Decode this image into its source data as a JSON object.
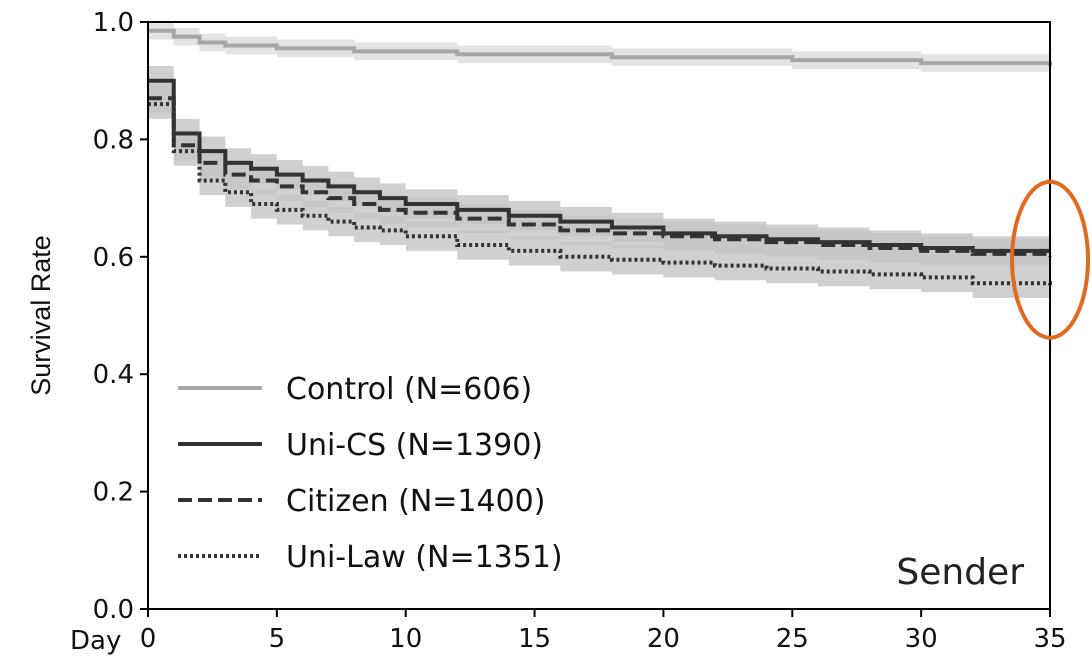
{
  "chart_data": {
    "type": "line",
    "title": "",
    "xlabel": "Day",
    "ylabel": "Survival Rate",
    "panel_label": "Sender",
    "xlim": [
      0,
      35
    ],
    "ylim": [
      0,
      1.0
    ],
    "x_ticks": [
      "0",
      "5",
      "10",
      "15",
      "20",
      "25",
      "30",
      "35"
    ],
    "y_ticks": [
      "0.0",
      "0.2",
      "0.4",
      "0.6",
      "0.8",
      "1.0"
    ],
    "grid": false,
    "legend_position": "bottom-left",
    "series": [
      {
        "name": "Control (N=606)",
        "color": "#a6a6a6",
        "dash": "solid",
        "ci_halfwidth": 0.015,
        "x": [
          0,
          1,
          2,
          3,
          5,
          8,
          12,
          18,
          25,
          30,
          35
        ],
        "y": [
          0.985,
          0.975,
          0.965,
          0.96,
          0.955,
          0.95,
          0.945,
          0.94,
          0.935,
          0.93,
          0.925
        ]
      },
      {
        "name": "Uni-CS (N=1390)",
        "color": "#333333",
        "dash": "solid",
        "ci_halfwidth": 0.025,
        "x": [
          0,
          1,
          2,
          3,
          4,
          5,
          6,
          7,
          8,
          9,
          10,
          12,
          14,
          16,
          18,
          20,
          22,
          24,
          26,
          28,
          30,
          32,
          35
        ],
        "y": [
          0.9,
          0.81,
          0.78,
          0.76,
          0.75,
          0.74,
          0.73,
          0.72,
          0.71,
          0.7,
          0.69,
          0.68,
          0.67,
          0.66,
          0.65,
          0.64,
          0.635,
          0.63,
          0.625,
          0.62,
          0.615,
          0.61,
          0.61
        ]
      },
      {
        "name": "Citizen (N=1400)",
        "color": "#333333",
        "dash": "dashed",
        "ci_halfwidth": 0.025,
        "x": [
          0,
          1,
          2,
          3,
          4,
          5,
          6,
          7,
          8,
          9,
          10,
          12,
          14,
          16,
          18,
          20,
          22,
          24,
          26,
          28,
          30,
          32,
          35
        ],
        "y": [
          0.87,
          0.79,
          0.76,
          0.74,
          0.73,
          0.72,
          0.71,
          0.7,
          0.69,
          0.68,
          0.675,
          0.665,
          0.655,
          0.645,
          0.64,
          0.635,
          0.63,
          0.625,
          0.62,
          0.615,
          0.61,
          0.605,
          0.6
        ]
      },
      {
        "name": "Uni-Law (N=1351)",
        "color": "#333333",
        "dash": "dotted",
        "ci_halfwidth": 0.025,
        "x": [
          0,
          1,
          2,
          3,
          4,
          5,
          6,
          7,
          8,
          9,
          10,
          12,
          14,
          16,
          18,
          20,
          22,
          24,
          26,
          28,
          30,
          32,
          35
        ],
        "y": [
          0.86,
          0.78,
          0.73,
          0.71,
          0.69,
          0.68,
          0.67,
          0.66,
          0.65,
          0.645,
          0.635,
          0.62,
          0.61,
          0.6,
          0.595,
          0.59,
          0.585,
          0.58,
          0.575,
          0.57,
          0.565,
          0.555,
          0.55
        ]
      }
    ],
    "annotation": {
      "shape": "ellipse",
      "color": "#e06a1e",
      "x": 35,
      "y": 0.595
    }
  }
}
